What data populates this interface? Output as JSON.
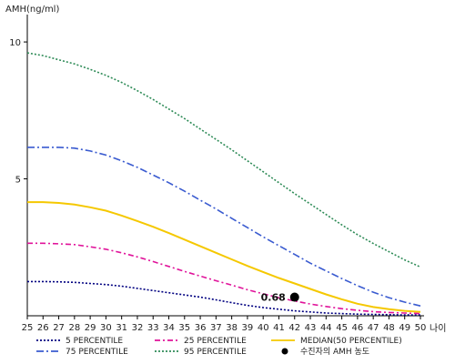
{
  "chart_data": {
    "type": "line",
    "ylabel": "AMH(ng/ml)",
    "xlabel": "나이",
    "xlim": [
      25,
      50
    ],
    "ylim": [
      0,
      11
    ],
    "x_ticks": [
      25,
      26,
      27,
      28,
      29,
      30,
      31,
      32,
      33,
      34,
      35,
      36,
      37,
      38,
      39,
      40,
      41,
      42,
      43,
      44,
      45,
      46,
      47,
      48,
      49,
      50
    ],
    "y_ticks": [
      5,
      10
    ],
    "x": [
      25,
      26,
      27,
      28,
      29,
      30,
      31,
      32,
      33,
      34,
      35,
      36,
      37,
      38,
      39,
      40,
      41,
      42,
      43,
      44,
      45,
      46,
      47,
      48,
      49,
      50
    ],
    "series": [
      {
        "name": "5 PERCENTILE",
        "color": "#000080",
        "dash": "2,2",
        "values": [
          1.25,
          1.25,
          1.24,
          1.22,
          1.18,
          1.14,
          1.08,
          1.0,
          0.92,
          0.84,
          0.76,
          0.68,
          0.58,
          0.48,
          0.38,
          0.3,
          0.24,
          0.18,
          0.14,
          0.1,
          0.08,
          0.06,
          0.05,
          0.04,
          0.03,
          0.03
        ]
      },
      {
        "name": "25 PERCENTILE",
        "color": "#e0139a",
        "dash": "6,3,2,3",
        "values": [
          2.65,
          2.65,
          2.63,
          2.6,
          2.52,
          2.43,
          2.3,
          2.15,
          1.98,
          1.8,
          1.62,
          1.45,
          1.28,
          1.12,
          0.95,
          0.8,
          0.66,
          0.54,
          0.43,
          0.34,
          0.26,
          0.2,
          0.15,
          0.12,
          0.1,
          0.08
        ]
      },
      {
        "name": "MEDIAN(50 PERCENTILE)",
        "color": "#f5c800",
        "dash": "",
        "values": [
          4.15,
          4.15,
          4.12,
          4.06,
          3.96,
          3.84,
          3.66,
          3.46,
          3.25,
          3.02,
          2.78,
          2.54,
          2.3,
          2.06,
          1.82,
          1.6,
          1.38,
          1.18,
          0.98,
          0.78,
          0.6,
          0.44,
          0.32,
          0.24,
          0.18,
          0.14
        ]
      },
      {
        "name": "75 PERCENTILE",
        "color": "#3a5bd0",
        "dash": "8,3,2,3",
        "values": [
          6.15,
          6.15,
          6.15,
          6.12,
          6.02,
          5.87,
          5.66,
          5.42,
          5.14,
          4.86,
          4.55,
          4.22,
          3.9,
          3.56,
          3.22,
          2.88,
          2.56,
          2.24,
          1.92,
          1.64,
          1.36,
          1.1,
          0.86,
          0.66,
          0.5,
          0.36
        ]
      },
      {
        "name": "95 PERCENTILE",
        "color": "#2e8b57",
        "dash": "2,2",
        "values": [
          9.6,
          9.5,
          9.35,
          9.2,
          9.0,
          8.78,
          8.52,
          8.22,
          7.9,
          7.55,
          7.2,
          6.82,
          6.44,
          6.06,
          5.66,
          5.26,
          4.86,
          4.46,
          4.08,
          3.7,
          3.32,
          2.96,
          2.64,
          2.34,
          2.04,
          1.78
        ]
      }
    ],
    "patient_point": {
      "x": 42,
      "y": 0.68,
      "label": "0.68",
      "legend": "수진자의 AMH 농도"
    }
  }
}
